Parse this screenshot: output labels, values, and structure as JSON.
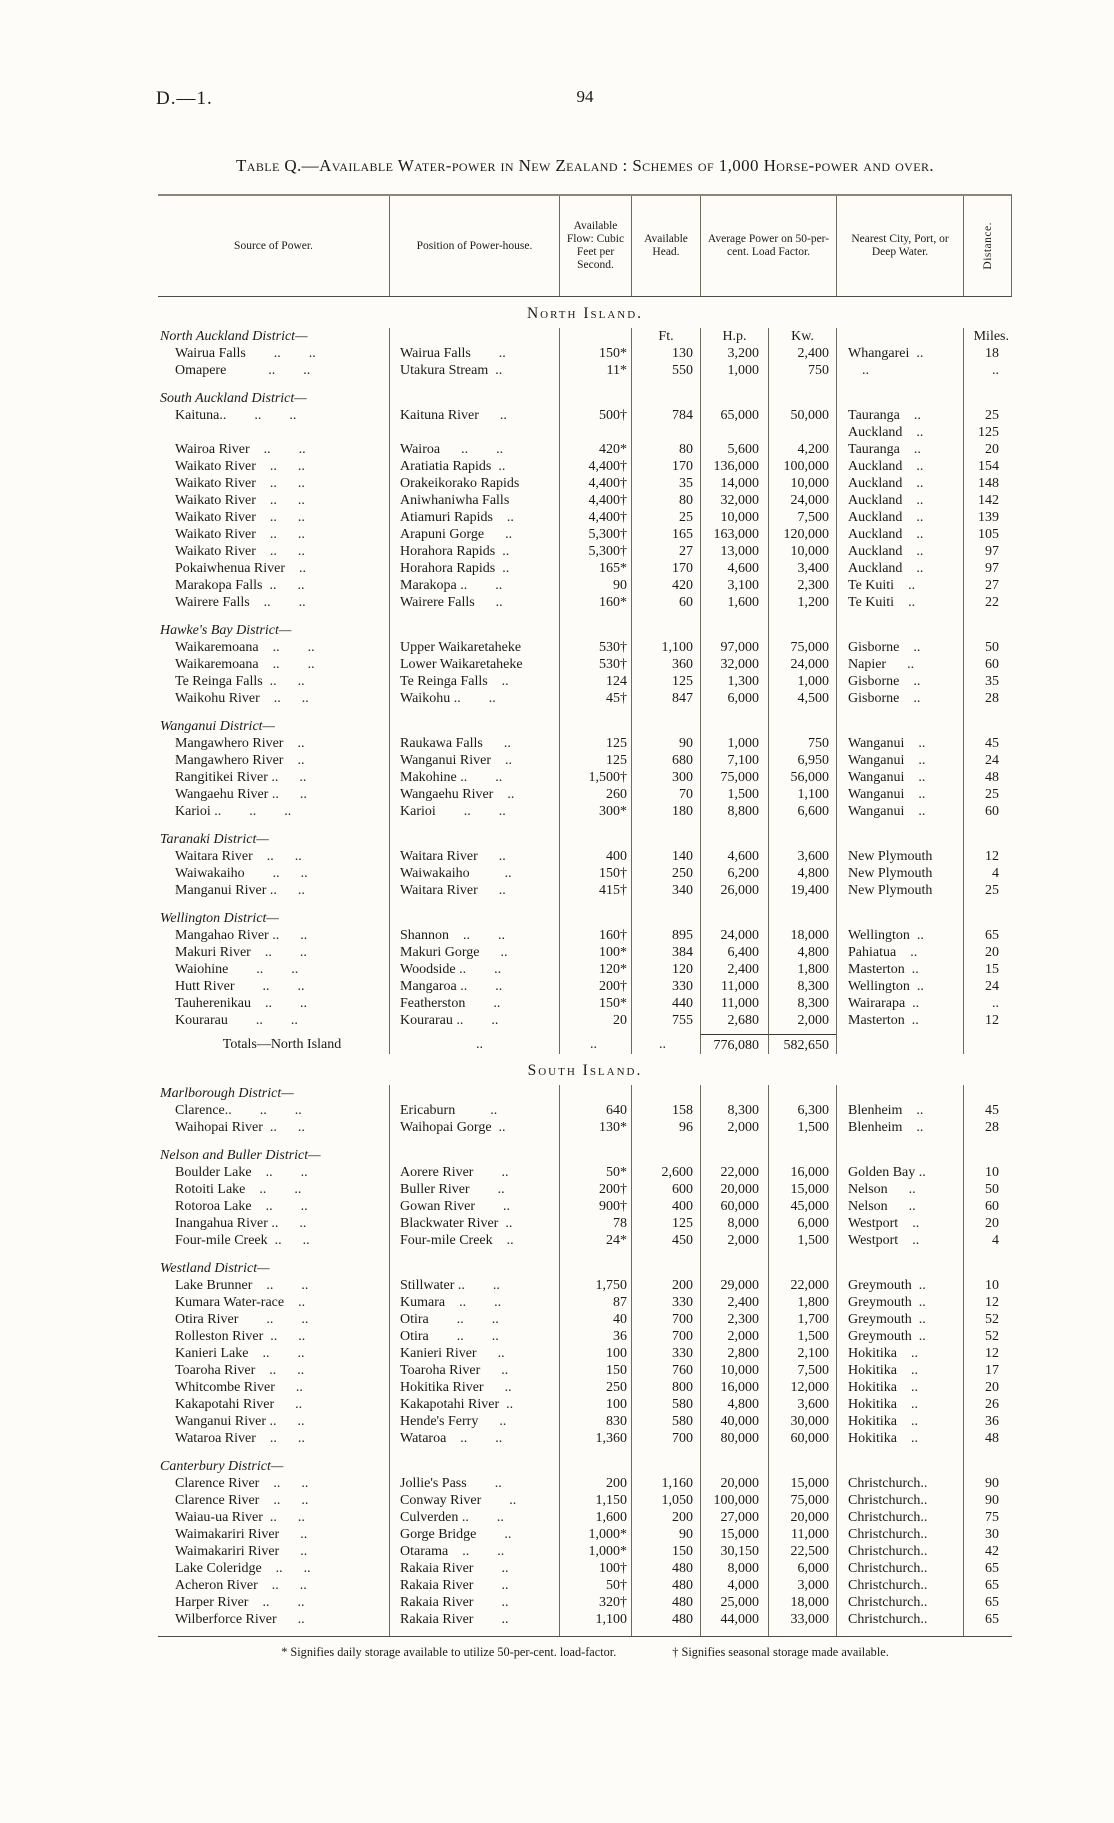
{
  "page": {
    "doc_ref": "D.—1.",
    "page_number": "94",
    "title": "Table Q.—Available Water-power in New Zealand : Schemes of 1,000 Horse-power and over."
  },
  "table": {
    "headers": {
      "source": "Source of Power.",
      "position": "Position of Power-house.",
      "flow": "Available Flow: Cubic Feet per Second.",
      "head": "Available Head.",
      "avg_power": "Average Power on 50-per-cent. Load Factor.",
      "city": "Nearest City, Port, or Deep Water.",
      "distance": "Distance."
    },
    "units": {
      "head": "Ft.",
      "hp": "H.p.",
      "kw": "Kw.",
      "distance": "Miles."
    },
    "sections": [
      {
        "island": "North Island.",
        "groups": [
          {
            "district": "North Auckland District—",
            "units": true,
            "rows": [
              [
                "Wairua Falls  ..  ..",
                "Wairua Falls  ..",
                "150*",
                "130",
                "3,200",
                "2,400",
                "Whangarei ..",
                "18"
              ],
              [
                "Omapere   ..  ..",
                "Utakura Stream ..",
                "11*",
                "550",
                "1,000",
                "750",
                " ..",
                ".."
              ]
            ]
          },
          {
            "district": "South Auckland District—",
            "rows": [
              [
                "Kaituna..  ..  ..",
                "Kaituna River  ..",
                "500†",
                "784",
                "65,000",
                "50,000",
                "Tauranga ..",
                "25"
              ],
              [
                "",
                "",
                "",
                "",
                "",
                "",
                "Auckland ..",
                "125"
              ],
              [
                "Wairoa River ..  ..",
                "Wairoa  ..  ..",
                "420*",
                "80",
                "5,600",
                "4,200",
                "Tauranga ..",
                "20"
              ],
              [
                "Waikato River ..  ..",
                "Aratiatia Rapids ..",
                "4,400†",
                "170",
                "136,000",
                "100,000",
                "Auckland ..",
                "154"
              ],
              [
                "Waikato River ..  ..",
                "Orakeikorako Rapids",
                "4,400†",
                "35",
                "14,000",
                "10,000",
                "Auckland ..",
                "148"
              ],
              [
                "Waikato River ..  ..",
                "Aniwhaniwha Falls",
                "4,400†",
                "80",
                "32,000",
                "24,000",
                "Auckland ..",
                "142"
              ],
              [
                "Waikato River ..  ..",
                "Atiamuri Rapids ..",
                "4,400†",
                "25",
                "10,000",
                "7,500",
                "Auckland ..",
                "139"
              ],
              [
                "Waikato River ..  ..",
                "Arapuni Gorge  ..",
                "5,300†",
                "165",
                "163,000",
                "120,000",
                "Auckland ..",
                "105"
              ],
              [
                "Waikato River ..  ..",
                "Horahora Rapids ..",
                "5,300†",
                "27",
                "13,000",
                "10,000",
                "Auckland ..",
                "97"
              ],
              [
                "Pokaiwhenua River ..",
                "Horahora Rapids ..",
                "165*",
                "170",
                "4,600",
                "3,400",
                "Auckland ..",
                "97"
              ],
              [
                "Marakopa Falls ..  ..",
                "Marakopa ..  ..",
                "90",
                "420",
                "3,100",
                "2,300",
                "Te Kuiti ..",
                "27"
              ],
              [
                "Wairere Falls ..  ..",
                "Wairere Falls  ..",
                "160*",
                "60",
                "1,600",
                "1,200",
                "Te Kuiti ..",
                "22"
              ]
            ]
          },
          {
            "district": "Hawke's Bay District—",
            "rows": [
              [
                "Waikaremoana ..  ..",
                "Upper Waikaretaheke",
                "530†",
                "1,100",
                "97,000",
                "75,000",
                "Gisborne ..",
                "50"
              ],
              [
                "Waikaremoana ..  ..",
                "Lower Waikaretaheke",
                "530†",
                "360",
                "32,000",
                "24,000",
                "Napier  ..",
                "60"
              ],
              [
                "Te Reinga Falls ..  ..",
                "Te Reinga Falls ..",
                "124",
                "125",
                "1,300",
                "1,000",
                "Gisborne ..",
                "35"
              ],
              [
                "Waikohu River ..  ..",
                "Waikohu ..  ..",
                "45†",
                "847",
                "6,000",
                "4,500",
                "Gisborne ..",
                "28"
              ]
            ]
          },
          {
            "district": "Wanganui District—",
            "rows": [
              [
                "Mangawhero River ..",
                "Raukawa Falls  ..",
                "125",
                "90",
                "1,000",
                "750",
                "Wanganui ..",
                "45"
              ],
              [
                "Mangawhero River ..",
                "Wanganui River ..",
                "125",
                "680",
                "7,100",
                "6,950",
                "Wanganui ..",
                "24"
              ],
              [
                "Rangitikei River ..  ..",
                "Makohine ..  ..",
                "1,500†",
                "300",
                "75,000",
                "56,000",
                "Wanganui ..",
                "48"
              ],
              [
                "Wangaehu River ..  ..",
                "Wangaehu River ..",
                "260",
                "70",
                "1,500",
                "1,100",
                "Wanganui ..",
                "25"
              ],
              [
                "Karioi ..  ..  ..",
                "Karioi  ..  ..",
                "300*",
                "180",
                "8,800",
                "6,600",
                "Wanganui ..",
                "60"
              ]
            ]
          },
          {
            "district": "Taranaki District—",
            "rows": [
              [
                "Waitara River ..  ..",
                "Waitara River  ..",
                "400",
                "140",
                "4,600",
                "3,600",
                "New Plymouth",
                "12"
              ],
              [
                "Waiwakaiho  ..  ..",
                "Waiwakaiho   ..",
                "150†",
                "250",
                "6,200",
                "4,800",
                "New Plymouth",
                "4"
              ],
              [
                "Manganui River ..  ..",
                "Waitara River  ..",
                "415†",
                "340",
                "26,000",
                "19,400",
                "New Plymouth",
                "25"
              ]
            ]
          },
          {
            "district": "Wellington District—",
            "rows": [
              [
                "Mangahao River ..  ..",
                "Shannon ..  ..",
                "160†",
                "895",
                "24,000",
                "18,000",
                "Wellington ..",
                "65"
              ],
              [
                "Makuri River ..  ..",
                "Makuri Gorge  ..",
                "100*",
                "384",
                "6,400",
                "4,800",
                "Pahiatua ..",
                "20"
              ],
              [
                "Waiohine  ..  ..",
                "Woodside ..  ..",
                "120*",
                "120",
                "2,400",
                "1,800",
                "Masterton ..",
                "15"
              ],
              [
                "Hutt River  ..  ..",
                "Mangaroa ..  ..",
                "200†",
                "330",
                "11,000",
                "8,300",
                "Wellington ..",
                "24"
              ],
              [
                "Tauherenikau ..  ..",
                "Featherston  ..",
                "150*",
                "440",
                "11,000",
                "8,300",
                "Wairarapa ..",
                ".."
              ],
              [
                "Kourarau  ..  ..",
                "Kourarau ..  ..",
                "20",
                "755",
                "2,680",
                "2,000",
                "Masterton ..",
                "12"
              ]
            ]
          }
        ],
        "totals": {
          "label": "Totals—North Island",
          "dots": [
            "..",
            "..",
            ".."
          ],
          "hp": "776,080",
          "kw": "582,650"
        }
      },
      {
        "island": "South Island.",
        "groups": [
          {
            "district": "Marlborough District—",
            "rows": [
              [
                "Clarence..  ..  ..",
                "Ericaburn   ..",
                "640",
                "158",
                "8,300",
                "6,300",
                "Blenheim ..",
                "45"
              ],
              [
                "Waihopai River ..  ..",
                "Waihopai Gorge ..",
                "130*",
                "96",
                "2,000",
                "1,500",
                "Blenheim ..",
                "28"
              ]
            ]
          },
          {
            "district": "Nelson and Buller District—",
            "rows": [
              [
                "Boulder Lake ..  ..",
                "Aorere River  ..",
                "50*",
                "2,600",
                "22,000",
                "16,000",
                "Golden Bay ..",
                "10"
              ],
              [
                "Rotoiti Lake ..  ..",
                "Buller River  ..",
                "200†",
                "600",
                "20,000",
                "15,000",
                "Nelson  ..",
                "50"
              ],
              [
                "Rotoroa Lake ..  ..",
                "Gowan River  ..",
                "900†",
                "400",
                "60,000",
                "45,000",
                "Nelson  ..",
                "60"
              ],
              [
                "Inangahua River ..  ..",
                "Blackwater River ..",
                "78",
                "125",
                "8,000",
                "6,000",
                "Westport ..",
                "20"
              ],
              [
                "Four-mile Creek ..  ..",
                "Four-mile Creek ..",
                "24*",
                "450",
                "2,000",
                "1,500",
                "Westport ..",
                "4"
              ]
            ]
          },
          {
            "district": "Westland District—",
            "rows": [
              [
                "Lake Brunner ..  ..",
                "Stillwater ..  ..",
                "1,750",
                "200",
                "29,000",
                "22,000",
                "Greymouth ..",
                "10"
              ],
              [
                "Kumara Water-race ..",
                "Kumara ..  ..",
                "87",
                "330",
                "2,400",
                "1,800",
                "Greymouth ..",
                "12"
              ],
              [
                "Otira River  ..  ..",
                "Otira  ..  ..",
                "40",
                "700",
                "2,300",
                "1,700",
                "Greymouth ..",
                "52"
              ],
              [
                "Rolleston River ..  ..",
                "Otira  ..  ..",
                "36",
                "700",
                "2,000",
                "1,500",
                "Greymouth ..",
                "52"
              ],
              [
                "Kanieri Lake ..  ..",
                "Kanieri River  ..",
                "100",
                "330",
                "2,800",
                "2,100",
                "Hokitika ..",
                "12"
              ],
              [
                "Toaroha River ..  ..",
                "Toaroha River  ..",
                "150",
                "760",
                "10,000",
                "7,500",
                "Hokitika ..",
                "17"
              ],
              [
                "Whitcombe River  ..",
                "Hokitika River  ..",
                "250",
                "800",
                "16,000",
                "12,000",
                "Hokitika ..",
                "20"
              ],
              [
                "Kakapotahi River  ..",
                "Kakapotahi River ..",
                "100",
                "580",
                "4,800",
                "3,600",
                "Hokitika ..",
                "26"
              ],
              [
                "Wanganui River ..  ..",
                "Hende's Ferry  ..",
                "830",
                "580",
                "40,000",
                "30,000",
                "Hokitika ..",
                "36"
              ],
              [
                "Wataroa River ..  ..",
                "Wataroa ..  ..",
                "1,360",
                "700",
                "80,000",
                "60,000",
                "Hokitika ..",
                "48"
              ]
            ]
          },
          {
            "district": "Canterbury District—",
            "rows": [
              [
                "Clarence River ..  ..",
                "Jollie's Pass  ..",
                "200",
                "1,160",
                "20,000",
                "15,000",
                "Christchurch..",
                "90"
              ],
              [
                "Clarence River ..  ..",
                "Conway River  ..",
                "1,150",
                "1,050",
                "100,000",
                "75,000",
                "Christchurch..",
                "90"
              ],
              [
                "Waiau-ua River ..  ..",
                "Culverden ..  ..",
                "1,600",
                "200",
                "27,000",
                "20,000",
                "Christchurch..",
                "75"
              ],
              [
                "Waimakariri River  ..",
                "Gorge Bridge  ..",
                "1,000*",
                "90",
                "15,000",
                "11,000",
                "Christchurch..",
                "30"
              ],
              [
                "Waimakariri River  ..",
                "Otarama ..  ..",
                "1,000*",
                "150",
                "30,150",
                "22,500",
                "Christchurch..",
                "42"
              ],
              [
                "Lake Coleridge ..  ..",
                "Rakaia River  ..",
                "100†",
                "480",
                "8,000",
                "6,000",
                "Christchurch..",
                "65"
              ],
              [
                "Acheron River ..  ..",
                "Rakaia River  ..",
                "50†",
                "480",
                "4,000",
                "3,000",
                "Christchurch..",
                "65"
              ],
              [
                "Harper River ..  ..",
                "Rakaia River  ..",
                "320†",
                "480",
                "25,000",
                "18,000",
                "Christchurch..",
                "65"
              ],
              [
                "Wilberforce River  ..",
                "Rakaia River  ..",
                "1,100",
                "480",
                "44,000",
                "33,000",
                "Christchurch..",
                "65"
              ]
            ]
          }
        ]
      }
    ],
    "footnotes": {
      "daily": "* Signifies daily storage available to utilize 50-per-cent. load-factor.",
      "seasonal": "† Signifies seasonal storage made available."
    }
  }
}
